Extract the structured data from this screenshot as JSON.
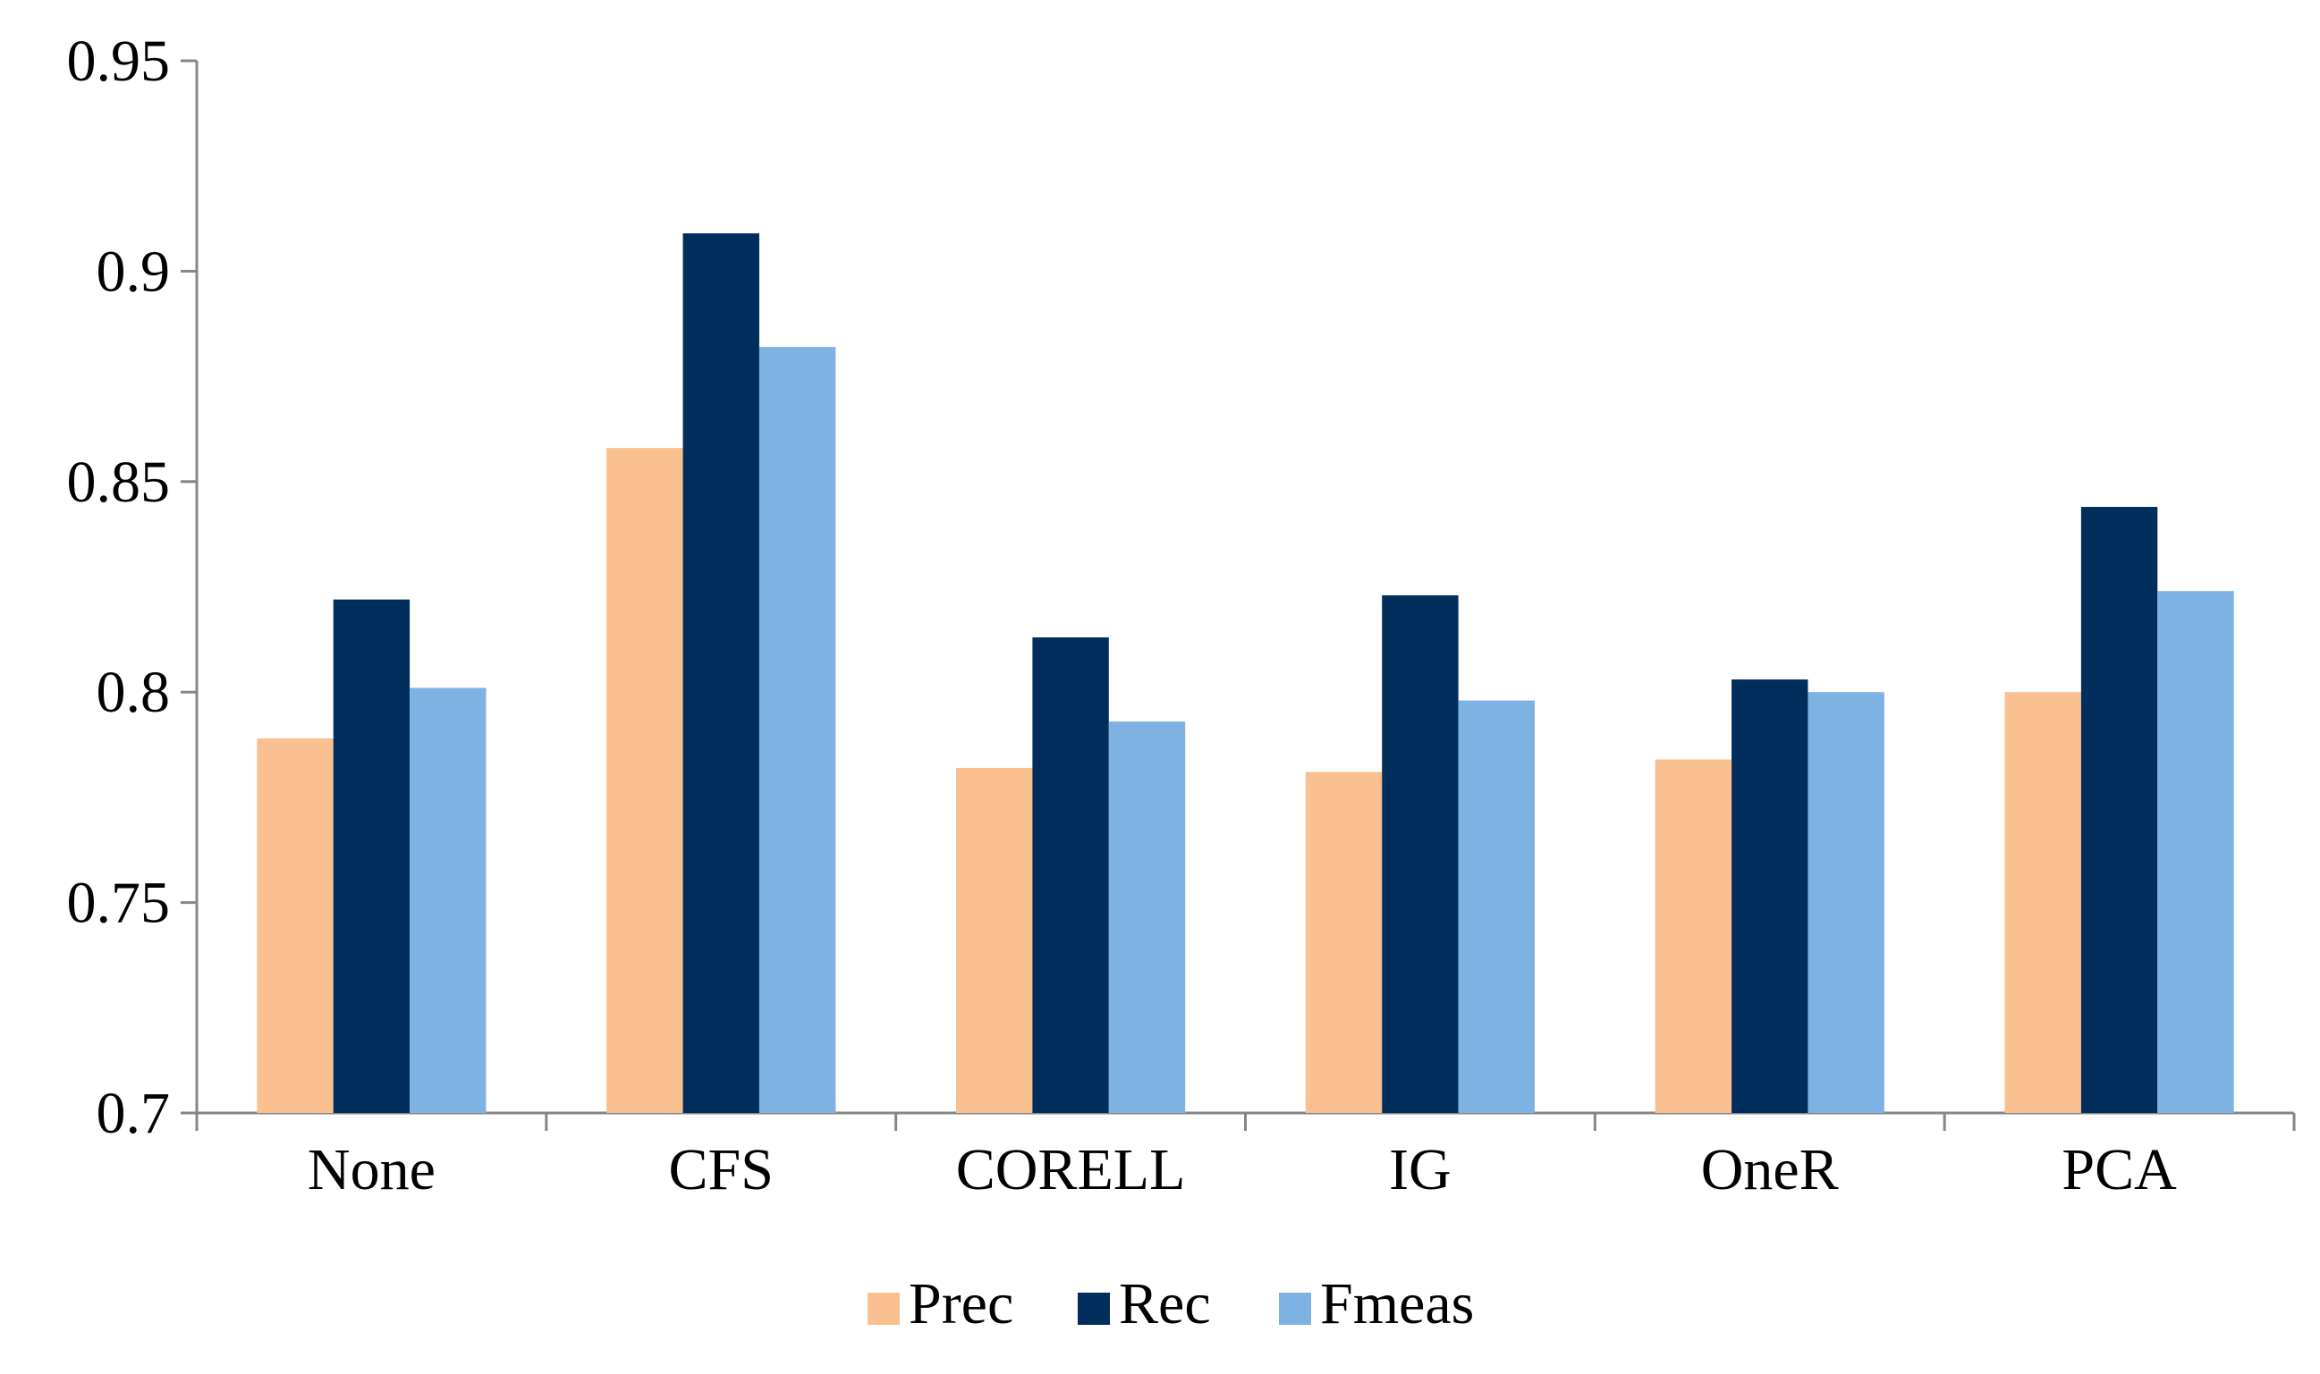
{
  "chart_data": {
    "type": "bar",
    "title": "",
    "xlabel": "",
    "ylabel": "",
    "ylim": [
      0.7,
      0.95
    ],
    "yticks": [
      0.7,
      0.75,
      0.8,
      0.85,
      0.9,
      0.95
    ],
    "ytick_labels": [
      "0.7",
      "0.75",
      "0.8",
      "0.85",
      "0.9",
      "0.95"
    ],
    "grid": false,
    "legend_position": "bottom",
    "categories": [
      "None",
      "CFS",
      "CORELL",
      "IG",
      "OneR",
      "PCA"
    ],
    "series": [
      {
        "name": "Prec",
        "color": "#FAC090",
        "values": [
          0.789,
          0.858,
          0.782,
          0.781,
          0.784,
          0.8
        ]
      },
      {
        "name": "Rec",
        "color": "#002E5C",
        "values": [
          0.822,
          0.909,
          0.813,
          0.823,
          0.803,
          0.844
        ]
      },
      {
        "name": "Fmeas",
        "color": "#7DB2E3",
        "values": [
          0.801,
          0.882,
          0.793,
          0.798,
          0.8,
          0.824
        ]
      }
    ],
    "axis_color": "#868686"
  }
}
